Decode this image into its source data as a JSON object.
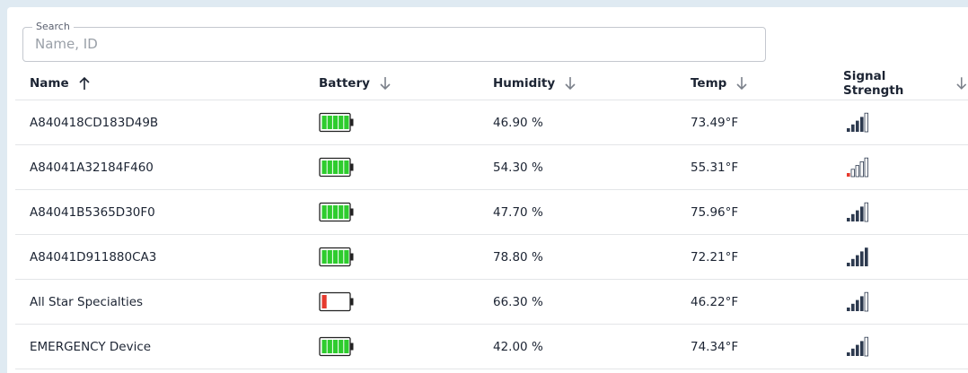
{
  "search": {
    "label": "Search",
    "placeholder": "Name, ID"
  },
  "table": {
    "columns": [
      "Name",
      "Battery",
      "Humidity",
      "Temp",
      "Signal Strength"
    ],
    "rows": [
      {
        "name": "A840418CD183D49B",
        "battery": 5,
        "humidity": "46.90 %",
        "temp": "73.49°F",
        "signal": 4
      },
      {
        "name": "A84041A32184F460",
        "battery": 5,
        "humidity": "54.30 %",
        "temp": "55.31°F",
        "signal": 1
      },
      {
        "name": "A84041B5365D30F0",
        "battery": 5,
        "humidity": "47.70 %",
        "temp": "75.96°F",
        "signal": 4
      },
      {
        "name": "A84041D911880CA3",
        "battery": 5,
        "humidity": "78.80 %",
        "temp": "72.21°F",
        "signal": 5
      },
      {
        "name": "All Star Specialties",
        "battery": 1,
        "humidity": "66.30 %",
        "temp": "46.22°F",
        "signal": 4
      },
      {
        "name": "EMERGENCY Device",
        "battery": 5,
        "humidity": "42.00 %",
        "temp": "74.34°F",
        "signal": 4
      }
    ]
  }
}
